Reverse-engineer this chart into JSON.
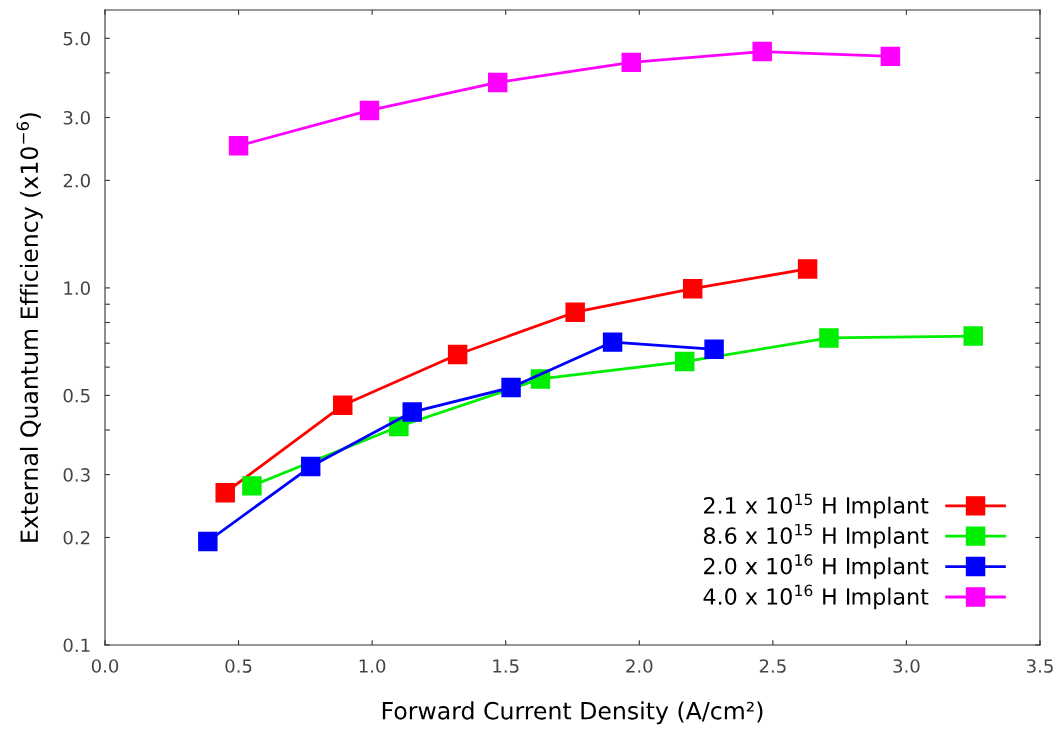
{
  "chart_data": {
    "type": "line",
    "xlabel": "Forward Current Density (A/cm²)",
    "ylabel": "External Quantum Efficiency (x10$^{−6}$)",
    "log": "y",
    "xlim": [
      0,
      3.5
    ],
    "ylim": [
      0.1,
      6
    ],
    "xticks": [
      {
        "value": 0,
        "label": "0.0"
      },
      {
        "value": 0.5,
        "label": "0.5"
      },
      {
        "value": 1,
        "label": "1.0"
      },
      {
        "value": 1.5,
        "label": "1.5"
      },
      {
        "value": 2,
        "label": "2.0"
      },
      {
        "value": 2.5,
        "label": "2.5"
      },
      {
        "value": 3,
        "label": "3.0"
      },
      {
        "value": 3.5,
        "label": "3.5"
      }
    ],
    "yticks": [
      {
        "value": 0.1,
        "label": "0.1"
      },
      {
        "value": 0.2,
        "label": "0.2"
      },
      {
        "value": 0.3,
        "label": "0.3"
      },
      {
        "value": 0.4,
        "label": null
      },
      {
        "value": 0.5,
        "label": "0.5"
      },
      {
        "value": 0.6,
        "label": null
      },
      {
        "value": 0.7,
        "label": null
      },
      {
        "value": 0.8,
        "label": null
      },
      {
        "value": 0.9,
        "label": null
      },
      {
        "value": 1,
        "label": "1.0"
      },
      {
        "value": 2,
        "label": "2.0"
      },
      {
        "value": 3,
        "label": "3.0"
      },
      {
        "value": 4,
        "label": null
      },
      {
        "value": 5,
        "label": "5.0"
      }
    ],
    "grid": false,
    "legend": "bottom right",
    "marker": "square",
    "line_style": "solid",
    "series": [
      {
        "name": "2.1 x 10$^{15}$ H Implant",
        "color": "#ff0000",
        "x": [
          0.45,
          0.89,
          1.32,
          1.76,
          2.2,
          2.63
        ],
        "values": [
          0.267,
          0.469,
          0.651,
          0.855,
          0.995,
          1.13
        ]
      },
      {
        "name": "8.6 x 10$^{15}$ H Implant",
        "color": "#00ee00",
        "x": [
          0.55,
          1.1,
          1.63,
          2.17,
          2.71,
          3.25
        ],
        "values": [
          0.279,
          0.409,
          0.556,
          0.622,
          0.724,
          0.733
        ]
      },
      {
        "name": "2.0 x 10$^{16}$ H Implant",
        "color": "#0000ff",
        "x": [
          0.385,
          0.77,
          1.15,
          1.52,
          1.9,
          2.28
        ],
        "values": [
          0.195,
          0.316,
          0.449,
          0.526,
          0.705,
          0.673
        ]
      },
      {
        "name": "4.0 x 10$^{16}$ H Implant",
        "color": "#ff00ff",
        "x": [
          0.5,
          0.99,
          1.47,
          1.97,
          2.46,
          2.94
        ],
        "values": [
          2.5,
          3.14,
          3.76,
          4.28,
          4.59,
          4.45
        ]
      }
    ]
  }
}
